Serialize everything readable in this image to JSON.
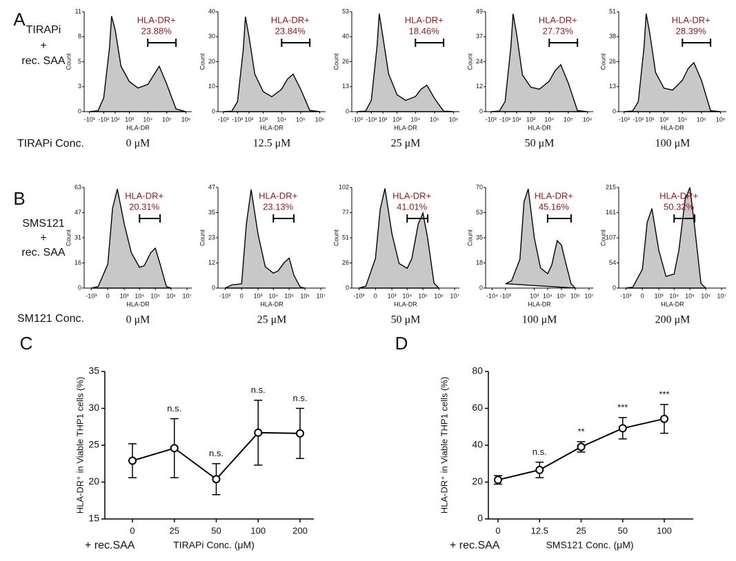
{
  "figure": {
    "panel_labels": [
      "A",
      "B",
      "C",
      "D"
    ],
    "row_labels": [
      [
        "TIRAPi",
        "+",
        "rec. SAA"
      ],
      [
        "SMS121",
        "+",
        "rec. SAA"
      ]
    ],
    "conc_labels": [
      "TIRAPi Conc.",
      "SM121 Conc."
    ]
  },
  "chart_data": [
    {
      "type": "area",
      "caption": "0 μM",
      "xlabel": "HLA-DR",
      "ylabel": "Count",
      "xscale": "symlog",
      "linthresh": 100,
      "color": "#c8c8c8",
      "x": [
        -1000,
        -300,
        -100,
        0,
        30,
        100,
        300,
        1000,
        3000,
        10000,
        20000,
        40000,
        100000,
        300000,
        1000000
      ],
      "values": [
        0,
        0.1,
        1.5,
        7,
        10.5,
        9,
        5,
        3.3,
        2.6,
        3,
        4,
        5,
        3,
        0.3,
        0
      ],
      "xlim": [
        -2000,
        2000000
      ],
      "ylim": [
        0,
        11
      ],
      "xticks": [
        {
          "value": -1000,
          "label": "-10³"
        },
        {
          "value": -100,
          "label": "-10²"
        },
        {
          "value": 100,
          "label": "10²"
        },
        {
          "value": 1000,
          "label": "10³"
        },
        {
          "value": 10000,
          "label": "10⁴"
        },
        {
          "value": 100000,
          "label": "10⁵"
        },
        {
          "value": 1000000,
          "label": "10⁶"
        }
      ],
      "yticks": [
        0,
        {
          "value": 2.75,
          "label": "3"
        },
        {
          "value": 5.5,
          "label": "5"
        },
        {
          "value": 8.25,
          "label": "8"
        },
        11
      ],
      "gate": {
        "name": "HLA-DR+",
        "label": "23.88%",
        "x": [
          10000,
          300000
        ]
      }
    },
    {
      "type": "area",
      "caption": "12.5 μM",
      "xlabel": "HLA-DR",
      "ylabel": "Count",
      "xscale": "symlog",
      "linthresh": 100,
      "color": "#c8c8c8",
      "x": [
        -1000,
        -300,
        -100,
        0,
        30,
        100,
        300,
        1000,
        3000,
        10000,
        20000,
        40000,
        100000,
        300000,
        1000000
      ],
      "values": [
        0,
        0.2,
        4,
        25,
        38,
        30,
        15,
        8,
        6,
        9,
        13,
        15,
        9,
        0.5,
        0
      ],
      "xlim": [
        -2000,
        2000000
      ],
      "ylim": [
        0,
        40
      ],
      "xticks": [
        {
          "value": -1000,
          "label": "-10³"
        },
        {
          "value": -100,
          "label": "-10²"
        },
        {
          "value": 100,
          "label": "10²"
        },
        {
          "value": 1000,
          "label": "10³"
        },
        {
          "value": 10000,
          "label": "10⁴"
        },
        {
          "value": 100000,
          "label": "10⁵"
        },
        {
          "value": 1000000,
          "label": "10⁶"
        }
      ],
      "yticks": [
        0,
        10,
        20,
        30,
        40
      ],
      "gate": {
        "name": "HLA-DR+",
        "label": "23.84%",
        "x": [
          10000,
          300000
        ]
      }
    },
    {
      "type": "area",
      "caption": "25 μM",
      "xlabel": "HLA-DR",
      "ylabel": "Count",
      "xscale": "symlog",
      "linthresh": 100,
      "color": "#c8c8c8",
      "x": [
        -1000,
        -300,
        -100,
        0,
        30,
        100,
        300,
        1000,
        3000,
        10000,
        20000,
        40000,
        100000,
        300000,
        1000000
      ],
      "values": [
        0,
        0.3,
        6,
        35,
        52,
        40,
        20,
        9,
        6,
        8,
        12,
        14,
        7,
        0.3,
        0
      ],
      "xlim": [
        -2000,
        2000000
      ],
      "ylim": [
        0,
        53
      ],
      "xticks": [
        {
          "value": -1000,
          "label": "-10³"
        },
        {
          "value": -100,
          "label": "-10²"
        },
        {
          "value": 100,
          "label": "10²"
        },
        {
          "value": 1000,
          "label": "10³"
        },
        {
          "value": 10000,
          "label": "10⁴"
        },
        {
          "value": 100000,
          "label": "10⁵"
        },
        {
          "value": 1000000,
          "label": "10⁶"
        }
      ],
      "yticks": [
        0,
        {
          "value": 13.25,
          "label": "13"
        },
        {
          "value": 26.5,
          "label": "26"
        },
        {
          "value": 39.75,
          "label": "40"
        },
        53
      ],
      "gate": {
        "name": "HLA-DR+",
        "label": "18.46%",
        "x": [
          10000,
          300000
        ]
      }
    },
    {
      "type": "area",
      "caption": "50 μM",
      "xlabel": "HLA-DR",
      "ylabel": "Count",
      "xscale": "symlog",
      "linthresh": 100,
      "color": "#c8c8c8",
      "x": [
        -1000,
        -300,
        -100,
        0,
        30,
        100,
        300,
        1000,
        3000,
        10000,
        20000,
        40000,
        100000,
        300000,
        1000000
      ],
      "values": [
        0,
        0.3,
        5,
        32,
        48,
        38,
        18,
        12,
        11,
        15,
        20,
        23,
        14,
        0.5,
        0
      ],
      "xlim": [
        -2000,
        2000000
      ],
      "ylim": [
        0,
        49
      ],
      "xticks": [
        {
          "value": -1000,
          "label": "-10³"
        },
        {
          "value": -100,
          "label": "-10²"
        },
        {
          "value": 100,
          "label": "10²"
        },
        {
          "value": 1000,
          "label": "10³"
        },
        {
          "value": 10000,
          "label": "10⁴"
        },
        {
          "value": 100000,
          "label": "10⁵"
        },
        {
          "value": 1000000,
          "label": "10⁶"
        }
      ],
      "yticks": [
        0,
        {
          "value": 12.25,
          "label": "12"
        },
        {
          "value": 24.5,
          "label": "24"
        },
        {
          "value": 36.75,
          "label": "37"
        },
        49
      ],
      "gate": {
        "name": "HLA-DR+",
        "label": "27.73%",
        "x": [
          10000,
          300000
        ]
      }
    },
    {
      "type": "area",
      "caption": "100 μM",
      "xlabel": "HLA-DR",
      "ylabel": "Count",
      "xscale": "symlog",
      "linthresh": 100,
      "color": "#c8c8c8",
      "x": [
        -1000,
        -300,
        -100,
        0,
        30,
        100,
        300,
        1000,
        3000,
        10000,
        20000,
        40000,
        100000,
        300000,
        1000000
      ],
      "values": [
        0,
        0.3,
        5,
        33,
        50,
        40,
        20,
        12,
        11,
        16,
        22,
        25,
        16,
        0.5,
        0
      ],
      "xlim": [
        -2000,
        2000000
      ],
      "ylim": [
        0,
        51
      ],
      "xticks": [
        {
          "value": -1000,
          "label": "-10³"
        },
        {
          "value": -100,
          "label": "-10²"
        },
        {
          "value": 100,
          "label": "10²"
        },
        {
          "value": 1000,
          "label": "10³"
        },
        {
          "value": 10000,
          "label": "10⁴"
        },
        {
          "value": 100000,
          "label": "10⁵"
        },
        {
          "value": 1000000,
          "label": "10⁶"
        }
      ],
      "yticks": [
        0,
        {
          "value": 12.75,
          "label": "13"
        },
        {
          "value": 25.5,
          "label": "26"
        },
        {
          "value": 38.25,
          "label": "38"
        },
        51
      ],
      "gate": {
        "name": "HLA-DR+",
        "label": "28.39%",
        "x": [
          10000,
          300000
        ]
      }
    },
    {
      "type": "area",
      "caption": "0 μM",
      "xlabel": "HLA-DR",
      "ylabel": "Count",
      "xscale": "symlog",
      "linthresh": 100,
      "color": "#c8c8c8",
      "x": [
        -1000,
        -300,
        0,
        100,
        300,
        1000,
        3000,
        10000,
        20000,
        50000,
        100000,
        200000,
        500000,
        1000000
      ],
      "values": [
        0,
        1,
        15,
        50,
        62,
        40,
        22,
        13,
        14,
        22,
        25,
        15,
        1,
        0
      ],
      "xlim": [
        -3000,
        20000000
      ],
      "ylim": [
        0,
        63
      ],
      "xticks": [
        {
          "value": -1000,
          "label": "-10³"
        },
        0,
        {
          "value": 1000,
          "label": "10³"
        },
        {
          "value": 10000,
          "label": "10⁴"
        },
        {
          "value": 100000,
          "label": "10⁵"
        },
        {
          "value": 1000000,
          "label": "10⁶"
        },
        {
          "value": 10000000,
          "label": "10⁷"
        }
      ],
      "yticks": [
        0,
        {
          "value": 15.75,
          "label": "16"
        },
        {
          "value": 31.5,
          "label": "31"
        },
        {
          "value": 47.25,
          "label": "47"
        },
        63
      ],
      "gate": {
        "name": "HLA-DR+",
        "label": "20.31%",
        "x": [
          10000,
          200000
        ]
      }
    },
    {
      "type": "area",
      "caption": "25 μM",
      "xlabel": "HLA-DR",
      "ylabel": "Count",
      "xscale": "symlog",
      "linthresh": 100,
      "color": "#c8c8c8",
      "x": [
        -1000,
        -300,
        0,
        100,
        300,
        1000,
        3000,
        10000,
        20000,
        50000,
        100000,
        200000,
        500000,
        1000000
      ],
      "values": [
        0,
        1.5,
        2,
        30,
        46,
        25,
        10,
        7,
        8,
        12,
        14,
        6,
        0.5,
        0
      ],
      "xlim": [
        -3000,
        20000000
      ],
      "ylim": [
        0,
        47
      ],
      "xticks": [
        {
          "value": -1000,
          "label": "-10³"
        },
        0,
        {
          "value": 1000,
          "label": "10³"
        },
        {
          "value": 10000,
          "label": "10⁴"
        },
        {
          "value": 100000,
          "label": "10⁵"
        },
        {
          "value": 1000000,
          "label": "10⁶"
        },
        {
          "value": 10000000,
          "label": "10⁷"
        }
      ],
      "yticks": [
        0,
        {
          "value": 11.75,
          "label": "12"
        },
        {
          "value": 23.5,
          "label": "23"
        },
        {
          "value": 35.25,
          "label": "35"
        },
        47
      ],
      "gate": {
        "name": "HLA-DR+",
        "label": "23.13%",
        "x": [
          10000,
          200000
        ]
      }
    },
    {
      "type": "area",
      "caption": "50 μM",
      "xlabel": "HLA-DR",
      "ylabel": "Count",
      "xscale": "symlog",
      "linthresh": 100,
      "color": "#c8c8c8",
      "x": [
        -1000,
        -300,
        0,
        100,
        300,
        1000,
        3000,
        10000,
        20000,
        50000,
        100000,
        200000,
        500000,
        1000000
      ],
      "values": [
        0,
        2,
        30,
        80,
        101,
        55,
        25,
        20,
        30,
        65,
        76,
        50,
        5,
        0
      ],
      "xlim": [
        -3000,
        20000000
      ],
      "ylim": [
        0,
        102
      ],
      "xticks": [
        {
          "value": -1000,
          "label": "-10³"
        },
        0,
        {
          "value": 1000,
          "label": "10³"
        },
        {
          "value": 10000,
          "label": "10⁴"
        },
        {
          "value": 100000,
          "label": "10⁵"
        },
        {
          "value": 1000000,
          "label": "10⁶"
        },
        {
          "value": 10000000,
          "label": "10⁷"
        }
      ],
      "yticks": [
        0,
        {
          "value": 25.5,
          "label": "26"
        },
        51,
        {
          "value": 76.5,
          "label": "77"
        },
        102
      ],
      "gate": {
        "name": "HLA-DR+",
        "label": "41.01%",
        "x": [
          10000,
          200000
        ]
      }
    },
    {
      "type": "area",
      "caption": "100 μM",
      "xlabel": "HLA-DR",
      "ylabel": "Count",
      "xscale": "symlog",
      "linthresh": 100,
      "color": "#c8c8c8",
      "x": [
        -1000,
        -300,
        0,
        100,
        300,
        1000,
        3000,
        10000,
        20000,
        50000,
        100000,
        200000,
        500000,
        1000000
      ],
      "values": [
        3,
        5,
        20,
        60,
        69,
        35,
        14,
        10,
        16,
        33,
        30,
        18,
        3,
        0
      ],
      "xlim": [
        -30000,
        20000000
      ],
      "ylim": [
        0,
        70
      ],
      "xticks": [
        {
          "value": -10000,
          "label": "-10⁴"
        },
        {
          "value": -1000,
          "label": "-10³"
        },
        {
          "value": 1000,
          "label": "10³"
        },
        {
          "value": 10000,
          "label": "10⁴"
        },
        {
          "value": 100000,
          "label": "10⁵"
        },
        {
          "value": 1000000,
          "label": "10⁶"
        },
        {
          "value": 10000000,
          "label": "10⁷"
        }
      ],
      "yticks": [
        0,
        {
          "value": 17.5,
          "label": "18"
        },
        35,
        {
          "value": 52.5,
          "label": "53"
        },
        70
      ],
      "gate": {
        "name": "HLA-DR+",
        "label": "45.16%",
        "x": [
          10000,
          500000
        ]
      }
    },
    {
      "type": "area",
      "caption": "200 μM",
      "xlabel": "HLA-DR",
      "ylabel": "Count",
      "xscale": "symlog",
      "linthresh": 100,
      "color": "#c8c8c8",
      "x": [
        -1000,
        -300,
        0,
        100,
        300,
        1000,
        3000,
        10000,
        20000,
        50000,
        100000,
        200000,
        500000,
        1000000
      ],
      "values": [
        0,
        2,
        40,
        140,
        170,
        80,
        25,
        30,
        80,
        190,
        215,
        130,
        10,
        0
      ],
      "xlim": [
        -3000,
        20000000
      ],
      "ylim": [
        0,
        215
      ],
      "xticks": [
        {
          "value": -1000,
          "label": "-10³"
        },
        0,
        {
          "value": 1000,
          "label": "10³"
        },
        {
          "value": 10000,
          "label": "10⁴"
        },
        {
          "value": 100000,
          "label": "10⁵"
        },
        {
          "value": 1000000,
          "label": "10⁶"
        },
        {
          "value": 10000000,
          "label": "10⁷"
        }
      ],
      "yticks": [
        0,
        {
          "value": 53.75,
          "label": "54"
        },
        {
          "value": 107.5,
          "label": "107"
        },
        {
          "value": 161.25,
          "label": "161"
        },
        215
      ],
      "gate": {
        "name": "HLA-DR+",
        "label": "50.32%",
        "x": [
          10000,
          200000
        ]
      }
    },
    {
      "type": "line",
      "xlabel": "TIRAPi Conc. (μM)",
      "ylabel": "HLA-DR⁺ in Viable THP1 cells (%)",
      "note": "+ rec.SAA",
      "color": "#000000",
      "categories": [
        "0",
        "25",
        "50",
        "100",
        "200"
      ],
      "values": [
        22.9,
        24.6,
        20.4,
        26.7,
        26.6
      ],
      "errors": [
        2.3,
        4.0,
        2.1,
        4.4,
        3.4
      ],
      "annotations": [
        null,
        "n.s.",
        "n.s.",
        "n.s.",
        "n.s."
      ],
      "ylim": [
        15,
        35
      ],
      "yticks": [
        15,
        20,
        25,
        30,
        35
      ]
    },
    {
      "type": "line",
      "xlabel": "SMS121 Conc. (μM)",
      "ylabel": "HLA-DR⁺ in Viable THP1 cells (%)",
      "note": "+ rec.SAA",
      "color": "#000000",
      "categories": [
        "0",
        "12.5",
        "25",
        "50",
        "100"
      ],
      "values": [
        21.2,
        26.6,
        39.1,
        49.2,
        54.3
      ],
      "errors": [
        2.3,
        4.2,
        2.8,
        5.8,
        7.8
      ],
      "annotations": [
        null,
        "n.s.",
        "**",
        "***",
        "***"
      ],
      "ylim": [
        0,
        80
      ],
      "yticks": [
        0,
        20,
        40,
        60,
        80
      ]
    }
  ]
}
